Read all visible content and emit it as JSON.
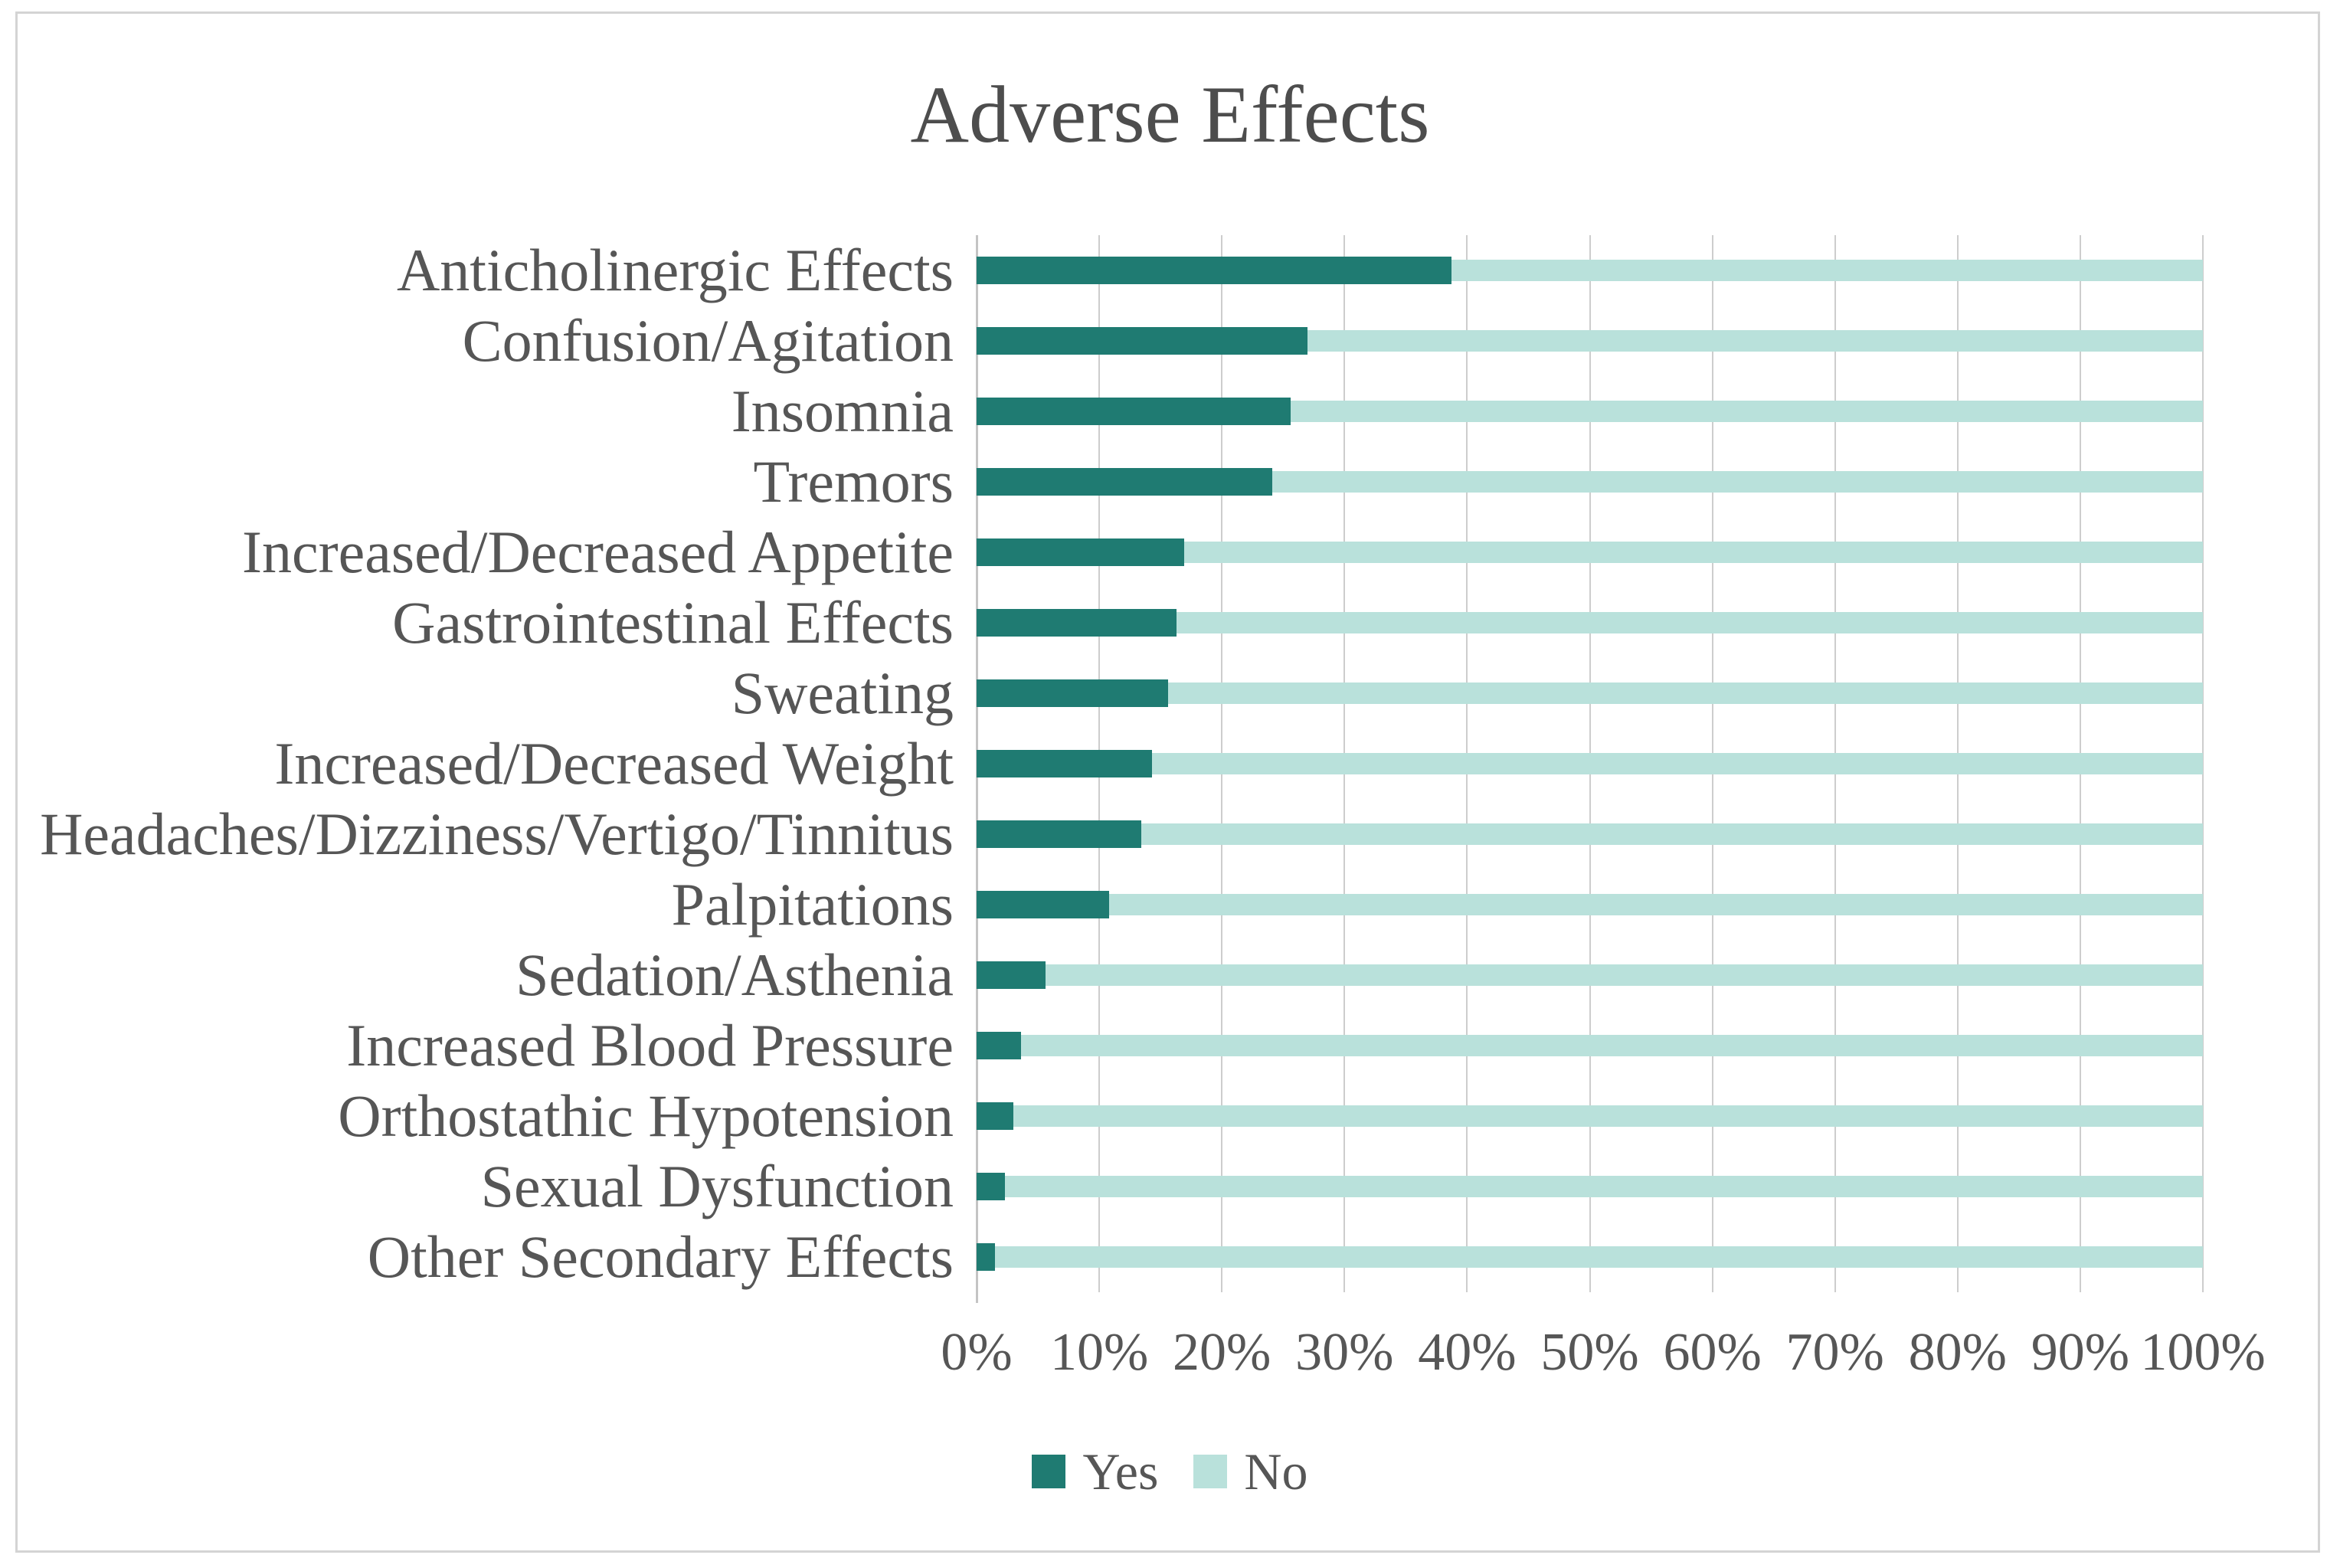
{
  "chart_data": {
    "type": "bar",
    "orientation": "horizontal",
    "stacked": "100%",
    "title": "Adverse Effects",
    "categories": [
      "Anticholinergic Effects",
      "Confusion/Agitation",
      "Insomnia",
      "Tremors",
      "Increased/Decreased Appetite",
      "Gastrointestinal Effects",
      "Sweating",
      "Increased/Decreased Weight",
      "Headaches/Dizziness/Vertigo/Tinnitus",
      "Palpitations",
      "Sedation/Asthenia",
      "Increased Blood Pressure",
      "Orthostathic Hypotension",
      "Sexual Dysfunction",
      "Other Secondary Effects"
    ],
    "series": [
      {
        "name": "Yes",
        "color": "#1F7B72",
        "values": [
          38.7,
          27.0,
          25.6,
          24.1,
          16.9,
          16.3,
          15.6,
          14.3,
          13.4,
          10.8,
          5.6,
          3.6,
          3.0,
          2.3,
          1.5
        ]
      },
      {
        "name": "No",
        "color": "#B9E1DB",
        "values": [
          61.3,
          73.0,
          74.4,
          75.9,
          83.1,
          83.7,
          84.4,
          85.7,
          86.6,
          89.2,
          94.4,
          96.4,
          97.0,
          97.7,
          98.5
        ]
      }
    ],
    "x_axis": {
      "min": 0,
      "max": 100,
      "tick_step": 10,
      "ticks": [
        "0%",
        "10%",
        "20%",
        "30%",
        "40%",
        "50%",
        "60%",
        "70%",
        "80%",
        "90%",
        "100%"
      ]
    },
    "legend": {
      "position": "bottom",
      "labels": [
        "Yes",
        "No"
      ]
    },
    "gridlines": "vertical",
    "colors": {
      "grid": "#CDCDCD",
      "axis_line": "#C4C4C4",
      "text": "#565656",
      "title_text": "#4D4D4D",
      "frame_border": "#D4D4D4",
      "background": "#FFFFFF"
    }
  }
}
